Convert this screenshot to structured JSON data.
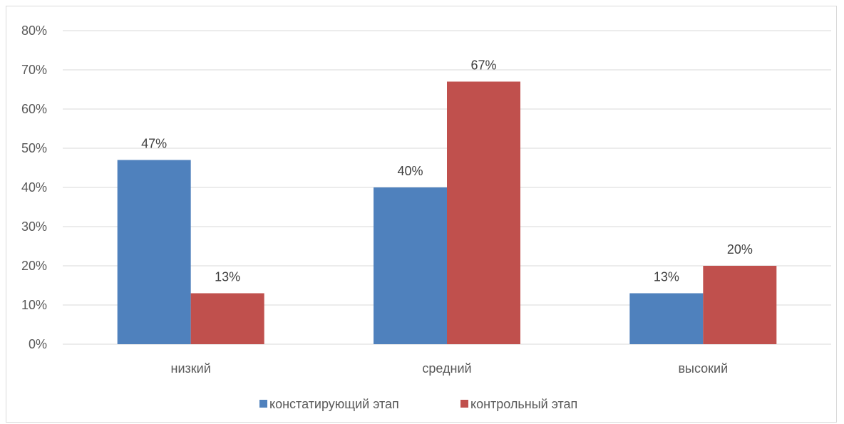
{
  "chart_data": {
    "type": "bar",
    "categories": [
      "низкий",
      "средний",
      "высокий"
    ],
    "series": [
      {
        "name": "констатирующий этап",
        "values": [
          47,
          40,
          13
        ],
        "labels": [
          "47%",
          "40%",
          "13%"
        ],
        "color": "#4F81BD"
      },
      {
        "name": "контрольный этап",
        "values": [
          13,
          67,
          20
        ],
        "labels": [
          "13%",
          "67%",
          "20%"
        ],
        "color": "#C0504D"
      }
    ],
    "ylim": [
      0,
      80
    ],
    "yticks": [
      "0%",
      "10%",
      "20%",
      "30%",
      "40%",
      "50%",
      "60%",
      "70%",
      "80%"
    ],
    "grid": true,
    "legend": "bottom",
    "title": "",
    "xlabel": "",
    "ylabel": ""
  }
}
